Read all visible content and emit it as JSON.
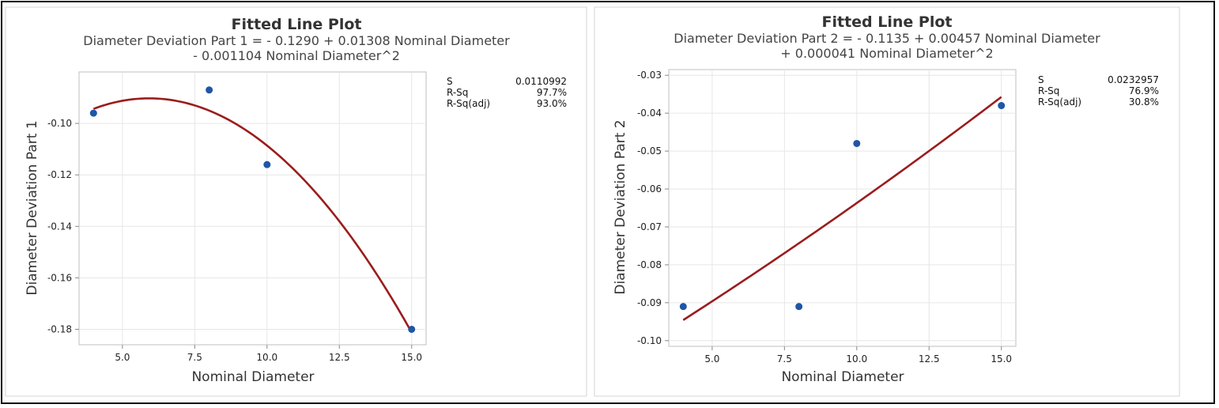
{
  "chart_data": [
    {
      "type": "scatter",
      "title": "Fitted Line Plot",
      "subtitle_lines": [
        "Diameter Deviation Part 1 = - 0.1290 + 0.01308 Nominal Diameter",
        "- 0.001104 Nominal Diameter^2"
      ],
      "xlabel": "Nominal Diameter",
      "ylabel": "Diameter Deviation Part 1",
      "xlim": [
        3.5,
        15.5
      ],
      "ylim": [
        -0.186,
        -0.08
      ],
      "x_ticks": [
        5.0,
        7.5,
        10.0,
        12.5,
        15.0
      ],
      "x_tick_labels": [
        "5.0",
        "7.5",
        "10.0",
        "12.5",
        "15.0"
      ],
      "y_ticks": [
        -0.1,
        -0.12,
        -0.14,
        -0.16,
        -0.18
      ],
      "y_tick_labels": [
        "-0.10",
        "-0.12",
        "-0.14",
        "-0.16",
        "-0.18"
      ],
      "grid": true,
      "points": [
        {
          "x": 4,
          "y": -0.096
        },
        {
          "x": 8,
          "y": -0.087
        },
        {
          "x": 10,
          "y": -0.116
        },
        {
          "x": 15,
          "y": -0.18
        }
      ],
      "fit": {
        "model": "quadratic",
        "coefficients": [
          -0.129,
          0.01308,
          -0.001104
        ],
        "x_range": [
          4,
          15
        ]
      },
      "stats": [
        {
          "label": "S",
          "value": "0.0110992"
        },
        {
          "label": "R-Sq",
          "value": "97.7%"
        },
        {
          "label": "R-Sq(adj)",
          "value": "93.0%"
        }
      ],
      "colors": {
        "point": "#1f56a6",
        "fit": "#9b1c1c",
        "grid": "#e6e6e6"
      }
    },
    {
      "type": "scatter",
      "title": "Fitted Line Plot",
      "subtitle_lines": [
        "Diameter Deviation Part 2 = - 0.1135 + 0.00457 Nominal Diameter",
        "+ 0.000041 Nominal Diameter^2"
      ],
      "xlabel": "Nominal Diameter",
      "ylabel": "Diameter Deviation Part 2",
      "xlim": [
        3.5,
        15.5
      ],
      "ylim": [
        -0.1015,
        -0.0285
      ],
      "x_ticks": [
        5.0,
        7.5,
        10.0,
        12.5,
        15.0
      ],
      "x_tick_labels": [
        "5.0",
        "7.5",
        "10.0",
        "12.5",
        "15.0"
      ],
      "y_ticks": [
        -0.03,
        -0.04,
        -0.05,
        -0.06,
        -0.07,
        -0.08,
        -0.09,
        -0.1
      ],
      "y_tick_labels": [
        "-0.03",
        "-0.04",
        "-0.05",
        "-0.06",
        "-0.07",
        "-0.08",
        "-0.09",
        "-0.10"
      ],
      "grid": true,
      "points": [
        {
          "x": 4,
          "y": -0.091
        },
        {
          "x": 8,
          "y": -0.091
        },
        {
          "x": 10,
          "y": -0.048
        },
        {
          "x": 15,
          "y": -0.038
        }
      ],
      "fit": {
        "model": "quadratic",
        "coefficients": [
          -0.1135,
          0.00457,
          4.1e-05
        ],
        "x_range": [
          4,
          15
        ]
      },
      "stats": [
        {
          "label": "S",
          "value": "0.0232957"
        },
        {
          "label": "R-Sq",
          "value": "76.9%"
        },
        {
          "label": "R-Sq(adj)",
          "value": "30.8%"
        }
      ],
      "colors": {
        "point": "#1f56a6",
        "fit": "#9b1c1c",
        "grid": "#e6e6e6"
      }
    }
  ]
}
